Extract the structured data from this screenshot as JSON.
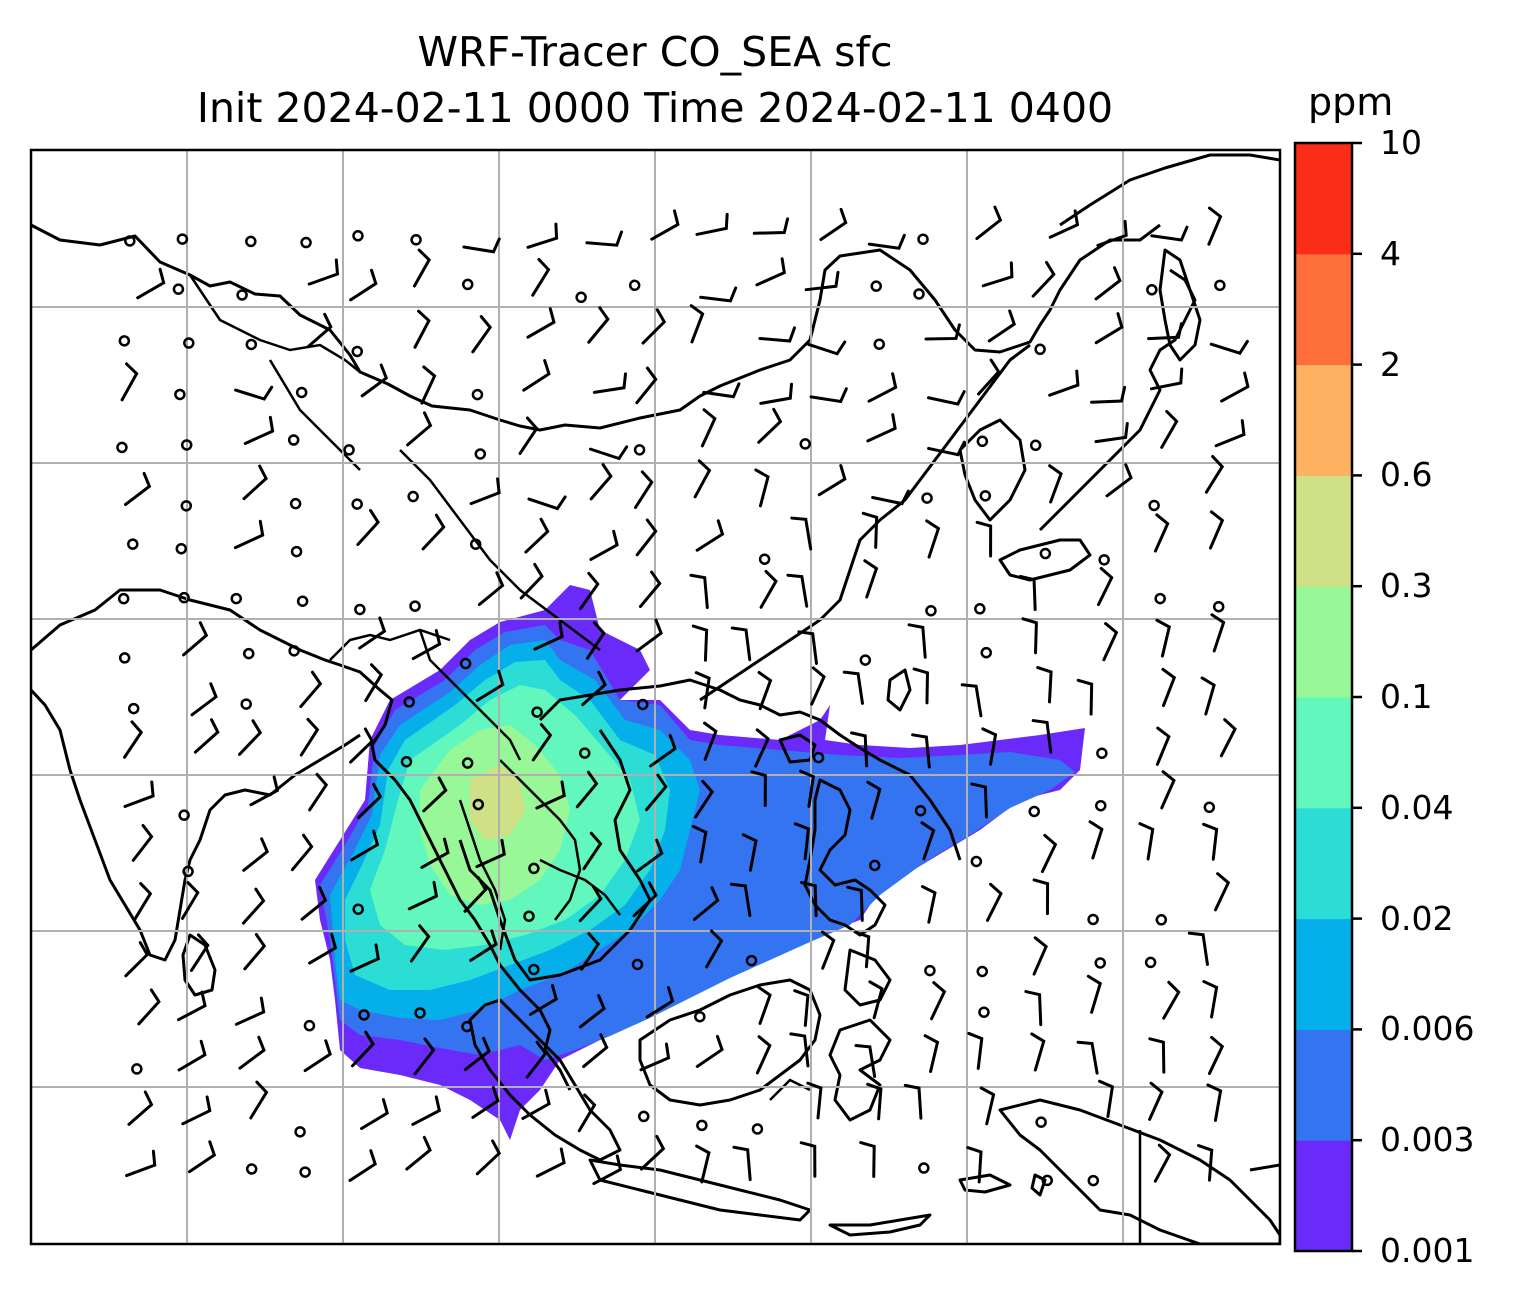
{
  "title": {
    "line1": "WRF-Tracer CO_SEA sfc",
    "line2": "Init 2024-02-11 0000 Time 2024-02-11 0400"
  },
  "colorbar": {
    "unit": "ppm",
    "levels": [
      "0.001",
      "0.003",
      "0.006",
      "0.02",
      "0.04",
      "0.1",
      "0.3",
      "0.6",
      "2",
      "4",
      "10"
    ],
    "colors": [
      "#6a2bfa",
      "#3574f0",
      "#05b0ea",
      "#2cddd5",
      "#62f8bd",
      "#98f797",
      "#cfe087",
      "#fdb262",
      "#fe6e3a",
      "#fb2c18"
    ]
  },
  "map": {
    "features": [
      "coastlines",
      "country-borders",
      "lat-lon-gridlines",
      "wind-barbs",
      "tracer-concentration-fill"
    ],
    "grid": true
  }
}
